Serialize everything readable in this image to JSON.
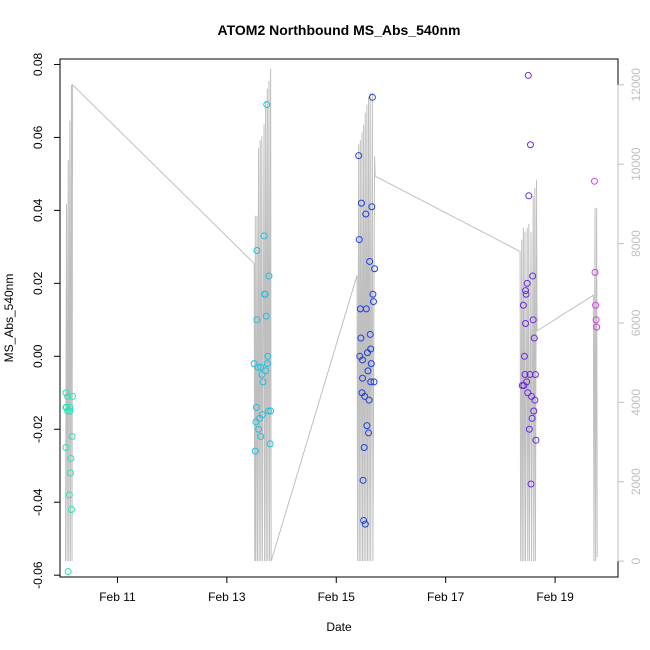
{
  "chart_data": {
    "type": "scatter",
    "title": "ATOM2 Northbound MS_Abs_540nm",
    "xlabel": "Date",
    "ylabel": "MS_Abs_540nm",
    "x_ticks": [
      "Feb 11",
      "Feb 13",
      "Feb 15",
      "Feb 17",
      "Feb 19"
    ],
    "x_tick_days": [
      11,
      13,
      15,
      17,
      19
    ],
    "xlim": [
      9.95,
      20.15
    ],
    "ylim": [
      -0.0605,
      0.0815
    ],
    "y_ticks": [
      -0.06,
      -0.04,
      -0.02,
      0.0,
      0.02,
      0.04,
      0.06,
      0.08
    ],
    "y_tick_labels": [
      "-0.06",
      "-0.04",
      "-0.02",
      "0.00",
      "0.02",
      "0.04",
      "0.06",
      "0.08"
    ],
    "y2_ticks": [
      0,
      2000,
      4000,
      6000,
      8000,
      10000,
      12000
    ],
    "y2_tick_labels": [
      "0",
      "2000",
      "4000",
      "6000",
      "8000",
      "10000",
      "12000"
    ],
    "y2lim": [
      -400,
      12650
    ],
    "grid": false,
    "legend": "none",
    "colors": {
      "line": "#bfbfbf",
      "axis": "#000000",
      "right_axis": "#bfbfbf"
    },
    "series": [
      {
        "color": "#22e8b8",
        "points": [
          [
            10.06,
            -0.01
          ],
          [
            10.06,
            -0.014
          ],
          [
            10.06,
            -0.025
          ],
          [
            10.07,
            -0.014
          ],
          [
            10.09,
            -0.011
          ],
          [
            10.09,
            -0.015
          ],
          [
            10.1,
            -0.059
          ],
          [
            10.12,
            -0.038
          ],
          [
            10.13,
            -0.014
          ],
          [
            10.13,
            -0.015
          ],
          [
            10.14,
            -0.032
          ],
          [
            10.15,
            -0.028
          ],
          [
            10.16,
            -0.042
          ],
          [
            10.17,
            -0.022
          ],
          [
            10.18,
            -0.011
          ]
        ]
      },
      {
        "color": "#1ec2e0",
        "points": [
          [
            13.5,
            -0.002
          ],
          [
            13.52,
            -0.026
          ],
          [
            13.53,
            -0.018
          ],
          [
            13.54,
            -0.014
          ],
          [
            13.55,
            0.029
          ],
          [
            13.55,
            0.01
          ],
          [
            13.57,
            -0.003
          ],
          [
            13.58,
            -0.02
          ],
          [
            13.6,
            -0.017
          ],
          [
            13.62,
            -0.022
          ],
          [
            13.62,
            -0.003
          ],
          [
            13.64,
            -0.005
          ],
          [
            13.65,
            -0.016
          ],
          [
            13.66,
            -0.007
          ],
          [
            13.68,
            0.033
          ],
          [
            13.69,
            0.017
          ],
          [
            13.7,
            0.017
          ],
          [
            13.71,
            -0.004
          ],
          [
            13.72,
            0.011
          ],
          [
            13.73,
            0.069
          ],
          [
            13.74,
            -0.002
          ],
          [
            13.75,
            0.0
          ],
          [
            13.76,
            -0.015
          ],
          [
            13.77,
            0.022
          ],
          [
            13.79,
            -0.024
          ],
          [
            13.8,
            -0.015
          ]
        ]
      },
      {
        "color": "#1b3fe0",
        "points": [
          [
            15.41,
            0.055
          ],
          [
            15.42,
            0.032
          ],
          [
            15.43,
            0.0
          ],
          [
            15.44,
            0.013
          ],
          [
            15.45,
            0.005
          ],
          [
            15.46,
            0.042
          ],
          [
            15.47,
            -0.01
          ],
          [
            15.48,
            -0.006
          ],
          [
            15.48,
            -0.001
          ],
          [
            15.49,
            -0.034
          ],
          [
            15.5,
            -0.045
          ],
          [
            15.51,
            -0.025
          ],
          [
            15.52,
            -0.011
          ],
          [
            15.53,
            -0.046
          ],
          [
            15.54,
            0.039
          ],
          [
            15.55,
            0.013
          ],
          [
            15.56,
            -0.019
          ],
          [
            15.57,
            0.001
          ],
          [
            15.58,
            -0.004
          ],
          [
            15.59,
            -0.021
          ],
          [
            15.6,
            -0.012
          ],
          [
            15.61,
            0.026
          ],
          [
            15.62,
            0.006
          ],
          [
            15.63,
            0.002
          ],
          [
            15.63,
            -0.007
          ],
          [
            15.64,
            -0.002
          ],
          [
            15.65,
            0.041
          ],
          [
            15.66,
            0.071
          ],
          [
            15.67,
            0.017
          ],
          [
            15.68,
            0.015
          ],
          [
            15.69,
            -0.007
          ],
          [
            15.7,
            0.024
          ]
        ]
      },
      {
        "color": "#6a2be0",
        "points": [
          [
            18.4,
            -0.008
          ],
          [
            18.42,
            0.014
          ],
          [
            18.43,
            -0.008
          ],
          [
            18.44,
            0.0
          ],
          [
            18.45,
            -0.005
          ],
          [
            18.46,
            0.018
          ],
          [
            18.46,
            0.009
          ],
          [
            18.47,
            0.017
          ],
          [
            18.48,
            -0.007
          ],
          [
            18.49,
            0.02
          ],
          [
            18.5,
            -0.01
          ],
          [
            18.51,
            0.077
          ],
          [
            18.52,
            0.044
          ],
          [
            18.53,
            -0.02
          ],
          [
            18.54,
            -0.005
          ],
          [
            18.55,
            0.058
          ],
          [
            18.56,
            -0.035
          ],
          [
            18.57,
            -0.011
          ],
          [
            18.58,
            -0.017
          ],
          [
            18.59,
            0.022
          ],
          [
            18.6,
            0.01
          ],
          [
            18.61,
            -0.015
          ],
          [
            18.62,
            0.005
          ],
          [
            18.63,
            -0.012
          ],
          [
            18.64,
            -0.005
          ],
          [
            18.65,
            -0.023
          ]
        ]
      },
      {
        "color": "#d43ee8",
        "points": [
          [
            19.72,
            0.048
          ],
          [
            19.73,
            0.023
          ],
          [
            19.74,
            0.014
          ],
          [
            19.75,
            0.01
          ],
          [
            19.76,
            0.008
          ]
        ]
      }
    ],
    "line_series": {
      "axis": "right",
      "points": [
        [
          10.05,
          0
        ],
        [
          10.07,
          9000
        ],
        [
          10.08,
          0
        ],
        [
          10.1,
          10100
        ],
        [
          10.11,
          0
        ],
        [
          10.13,
          11100
        ],
        [
          10.14,
          0
        ],
        [
          10.16,
          12000
        ],
        [
          10.17,
          0
        ],
        [
          10.18,
          12000
        ],
        [
          13.5,
          7500
        ],
        [
          13.51,
          0
        ],
        [
          13.52,
          8700
        ],
        [
          13.53,
          0
        ],
        [
          13.55,
          8700
        ],
        [
          13.56,
          0
        ],
        [
          13.58,
          10400
        ],
        [
          13.59,
          0
        ],
        [
          13.61,
          10600
        ],
        [
          13.62,
          0
        ],
        [
          13.64,
          10700
        ],
        [
          13.65,
          0
        ],
        [
          13.68,
          11000
        ],
        [
          13.69,
          0
        ],
        [
          13.71,
          11600
        ],
        [
          13.72,
          0
        ],
        [
          13.74,
          11900
        ],
        [
          13.75,
          0
        ],
        [
          13.77,
          12100
        ],
        [
          13.78,
          0
        ],
        [
          13.8,
          12400
        ],
        [
          13.81,
          0
        ],
        [
          15.38,
          7200
        ],
        [
          15.39,
          0
        ],
        [
          15.41,
          10500
        ],
        [
          15.42,
          0
        ],
        [
          15.44,
          10600
        ],
        [
          15.45,
          0
        ],
        [
          15.47,
          10800
        ],
        [
          15.48,
          0
        ],
        [
          15.5,
          11000
        ],
        [
          15.51,
          0
        ],
        [
          15.53,
          11300
        ],
        [
          15.54,
          0
        ],
        [
          15.56,
          11500
        ],
        [
          15.57,
          0
        ],
        [
          15.59,
          11700
        ],
        [
          15.6,
          0
        ],
        [
          15.62,
          11800
        ],
        [
          15.63,
          0
        ],
        [
          15.66,
          11800
        ],
        [
          15.67,
          0
        ],
        [
          15.7,
          10200
        ],
        [
          15.71,
          9700
        ],
        [
          18.36,
          7800
        ],
        [
          18.37,
          0
        ],
        [
          18.39,
          8100
        ],
        [
          18.4,
          0
        ],
        [
          18.42,
          8400
        ],
        [
          18.43,
          0
        ],
        [
          18.45,
          8300
        ],
        [
          18.46,
          0
        ],
        [
          18.49,
          8400
        ],
        [
          18.5,
          0
        ],
        [
          18.52,
          8500
        ],
        [
          18.53,
          0
        ],
        [
          18.56,
          8300
        ],
        [
          18.57,
          0
        ],
        [
          18.6,
          9200
        ],
        [
          18.61,
          0
        ],
        [
          18.63,
          9400
        ],
        [
          18.64,
          0
        ],
        [
          18.66,
          9600
        ],
        [
          18.67,
          5800
        ],
        [
          19.7,
          6700
        ],
        [
          19.71,
          0
        ],
        [
          19.73,
          8900
        ],
        [
          19.74,
          0
        ],
        [
          19.76,
          8900
        ],
        [
          19.77,
          100
        ]
      ]
    }
  }
}
